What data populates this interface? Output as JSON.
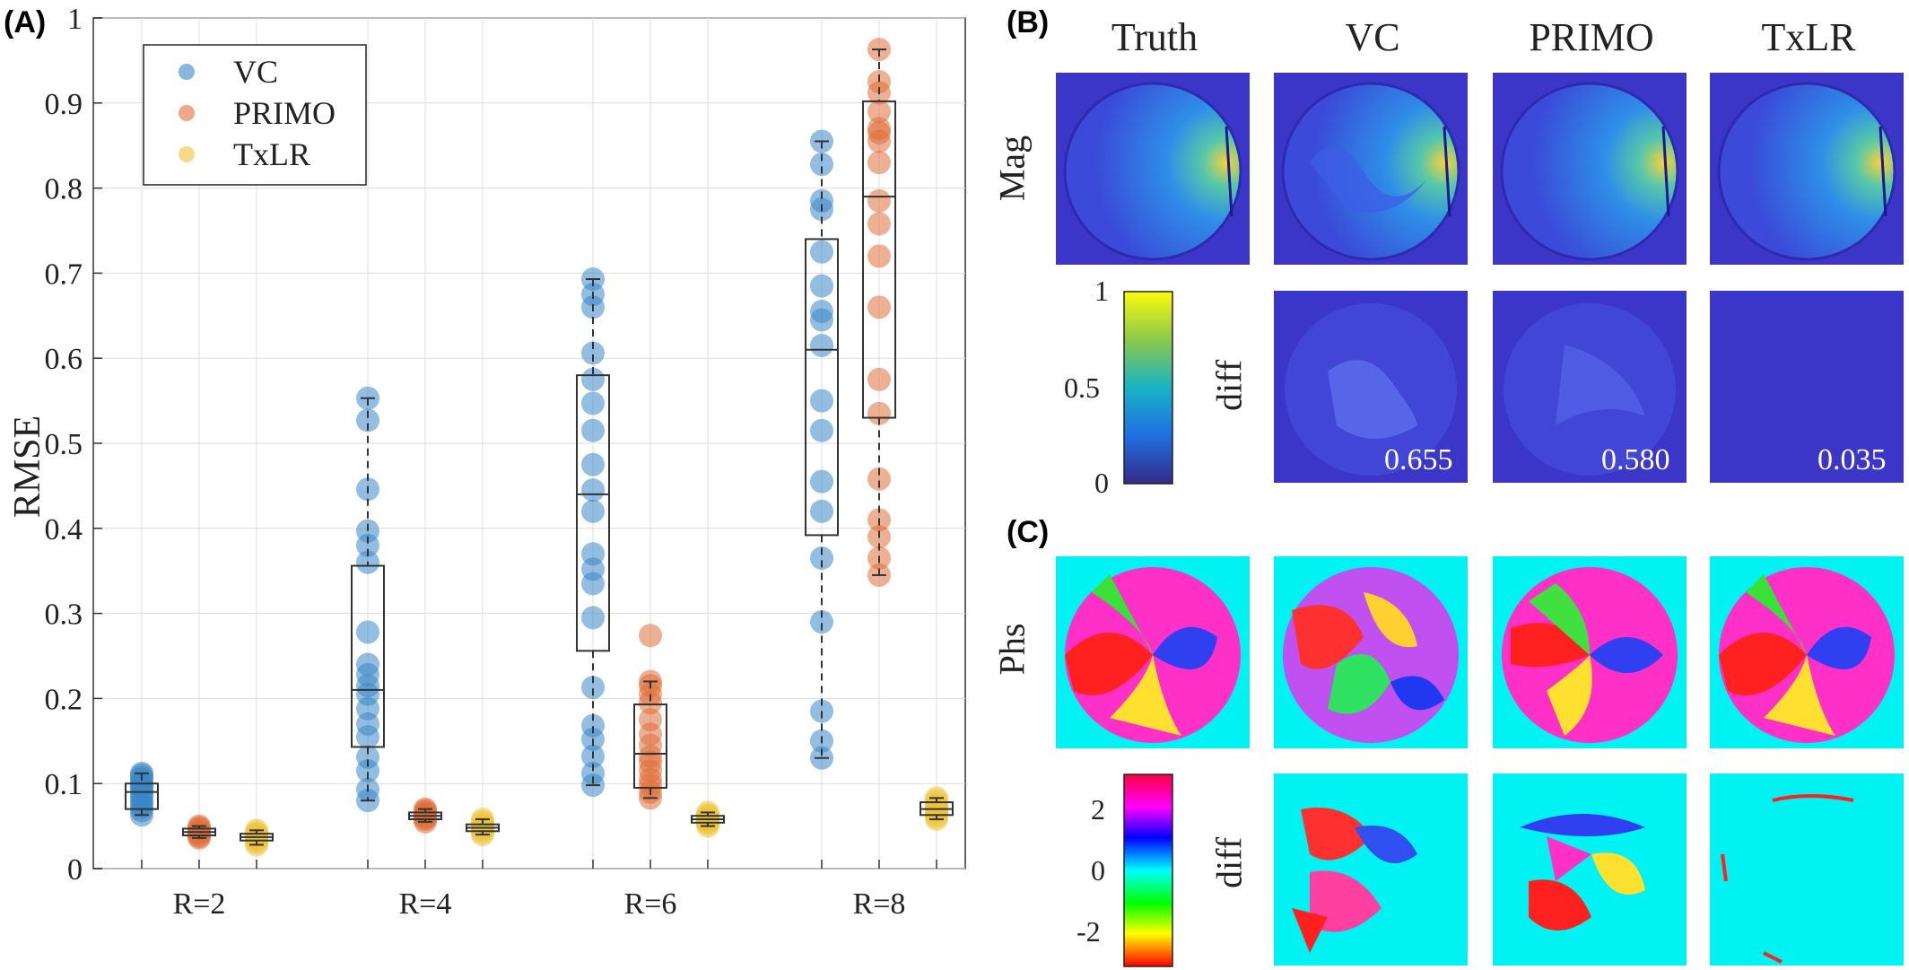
{
  "panels": {
    "a": "(A)",
    "b": "(B)",
    "c": "(C)"
  },
  "chart_data": {
    "type": "box",
    "ylabel": "RMSE",
    "xlabel": "",
    "ylim": [
      0,
      1
    ],
    "yticks": [
      "0",
      "0.1",
      "0.2",
      "0.3",
      "0.4",
      "0.5",
      "0.6",
      "0.7",
      "0.8",
      "0.9",
      "1"
    ],
    "grid": true,
    "legend_position": "top-left",
    "categories": [
      "R=2",
      "R=4",
      "R=6",
      "R=8"
    ],
    "series": [
      {
        "name": "VC",
        "color": "#3a86c8",
        "groups": [
          {
            "points": [
              0.063,
              0.068,
              0.072,
              0.076,
              0.08,
              0.084,
              0.088,
              0.092,
              0.095,
              0.098,
              0.1,
              0.104,
              0.107,
              0.11,
              0.112
            ],
            "box": {
              "q1": 0.07,
              "median": 0.09,
              "q3": 0.1,
              "min": 0.063,
              "max": 0.112
            }
          },
          {
            "points": [
              0.08,
              0.093,
              0.115,
              0.131,
              0.155,
              0.17,
              0.188,
              0.205,
              0.215,
              0.228,
              0.24,
              0.278,
              0.36,
              0.38,
              0.397,
              0.446,
              0.527,
              0.553
            ],
            "box": {
              "q1": 0.143,
              "median": 0.21,
              "q3": 0.356,
              "min": 0.08,
              "max": 0.553
            }
          },
          {
            "points": [
              0.098,
              0.112,
              0.132,
              0.152,
              0.168,
              0.213,
              0.295,
              0.335,
              0.352,
              0.37,
              0.42,
              0.445,
              0.475,
              0.515,
              0.547,
              0.575,
              0.606,
              0.66,
              0.675,
              0.693
            ],
            "box": {
              "q1": 0.256,
              "median": 0.44,
              "q3": 0.58,
              "min": 0.098,
              "max": 0.693
            }
          },
          {
            "points": [
              0.13,
              0.15,
              0.185,
              0.29,
              0.365,
              0.42,
              0.455,
              0.515,
              0.55,
              0.615,
              0.645,
              0.655,
              0.685,
              0.725,
              0.775,
              0.785,
              0.828,
              0.855
            ],
            "box": {
              "q1": 0.392,
              "median": 0.61,
              "q3": 0.74,
              "min": 0.13,
              "max": 0.855
            }
          }
        ]
      },
      {
        "name": "PRIMO",
        "color": "#e0703a",
        "groups": [
          {
            "points": [
              0.036,
              0.038,
              0.04,
              0.042,
              0.044,
              0.046,
              0.048,
              0.05
            ],
            "box": {
              "q1": 0.039,
              "median": 0.043,
              "q3": 0.047,
              "min": 0.036,
              "max": 0.05
            }
          },
          {
            "points": [
              0.055,
              0.058,
              0.06,
              0.062,
              0.064,
              0.066,
              0.068,
              0.07
            ],
            "box": {
              "q1": 0.058,
              "median": 0.062,
              "q3": 0.066,
              "min": 0.055,
              "max": 0.07
            }
          },
          {
            "points": [
              0.083,
              0.09,
              0.098,
              0.105,
              0.115,
              0.125,
              0.132,
              0.145,
              0.158,
              0.175,
              0.195,
              0.205,
              0.215,
              0.22,
              0.274
            ],
            "box": {
              "q1": 0.095,
              "median": 0.135,
              "q3": 0.193,
              "min": 0.083,
              "max": 0.22
            }
          },
          {
            "points": [
              0.345,
              0.365,
              0.39,
              0.41,
              0.458,
              0.535,
              0.575,
              0.66,
              0.72,
              0.758,
              0.785,
              0.83,
              0.855,
              0.865,
              0.87,
              0.89,
              0.912,
              0.925,
              0.963
            ],
            "box": {
              "q1": 0.53,
              "median": 0.79,
              "q3": 0.902,
              "min": 0.345,
              "max": 0.963
            }
          }
        ]
      },
      {
        "name": "TxLR",
        "color": "#efc23a",
        "groups": [
          {
            "points": [
              0.028,
              0.031,
              0.034,
              0.036,
              0.038,
              0.04,
              0.042,
              0.045
            ],
            "box": {
              "q1": 0.033,
              "median": 0.037,
              "q3": 0.041,
              "min": 0.028,
              "max": 0.045
            }
          },
          {
            "points": [
              0.04,
              0.043,
              0.046,
              0.048,
              0.05,
              0.052,
              0.055,
              0.058
            ],
            "box": {
              "q1": 0.044,
              "median": 0.048,
              "q3": 0.052,
              "min": 0.04,
              "max": 0.058
            }
          },
          {
            "points": [
              0.05,
              0.053,
              0.055,
              0.057,
              0.059,
              0.061,
              0.063,
              0.066
            ],
            "box": {
              "q1": 0.054,
              "median": 0.058,
              "q3": 0.062,
              "min": 0.05,
              "max": 0.066
            }
          },
          {
            "points": [
              0.058,
              0.061,
              0.064,
              0.067,
              0.07,
              0.073,
              0.076,
              0.08,
              0.083
            ],
            "box": {
              "q1": 0.063,
              "median": 0.07,
              "q3": 0.078,
              "min": 0.058,
              "max": 0.083
            }
          }
        ]
      }
    ]
  },
  "images": {
    "columns": [
      "Truth",
      "VC",
      "PRIMO",
      "TxLR"
    ],
    "mag_row_label": "Mag",
    "phs_row_label": "Phs",
    "diff_label": "diff",
    "mag_colorbar_ticks": [
      "1",
      "0.5",
      "0"
    ],
    "phs_colorbar_ticks": [
      "2",
      "0",
      "-2"
    ],
    "mag_diff_rmse": [
      "0.655",
      "0.580",
      "0.035"
    ],
    "mag_background": "#3b36c8",
    "phs_background": "#00f2f2"
  }
}
